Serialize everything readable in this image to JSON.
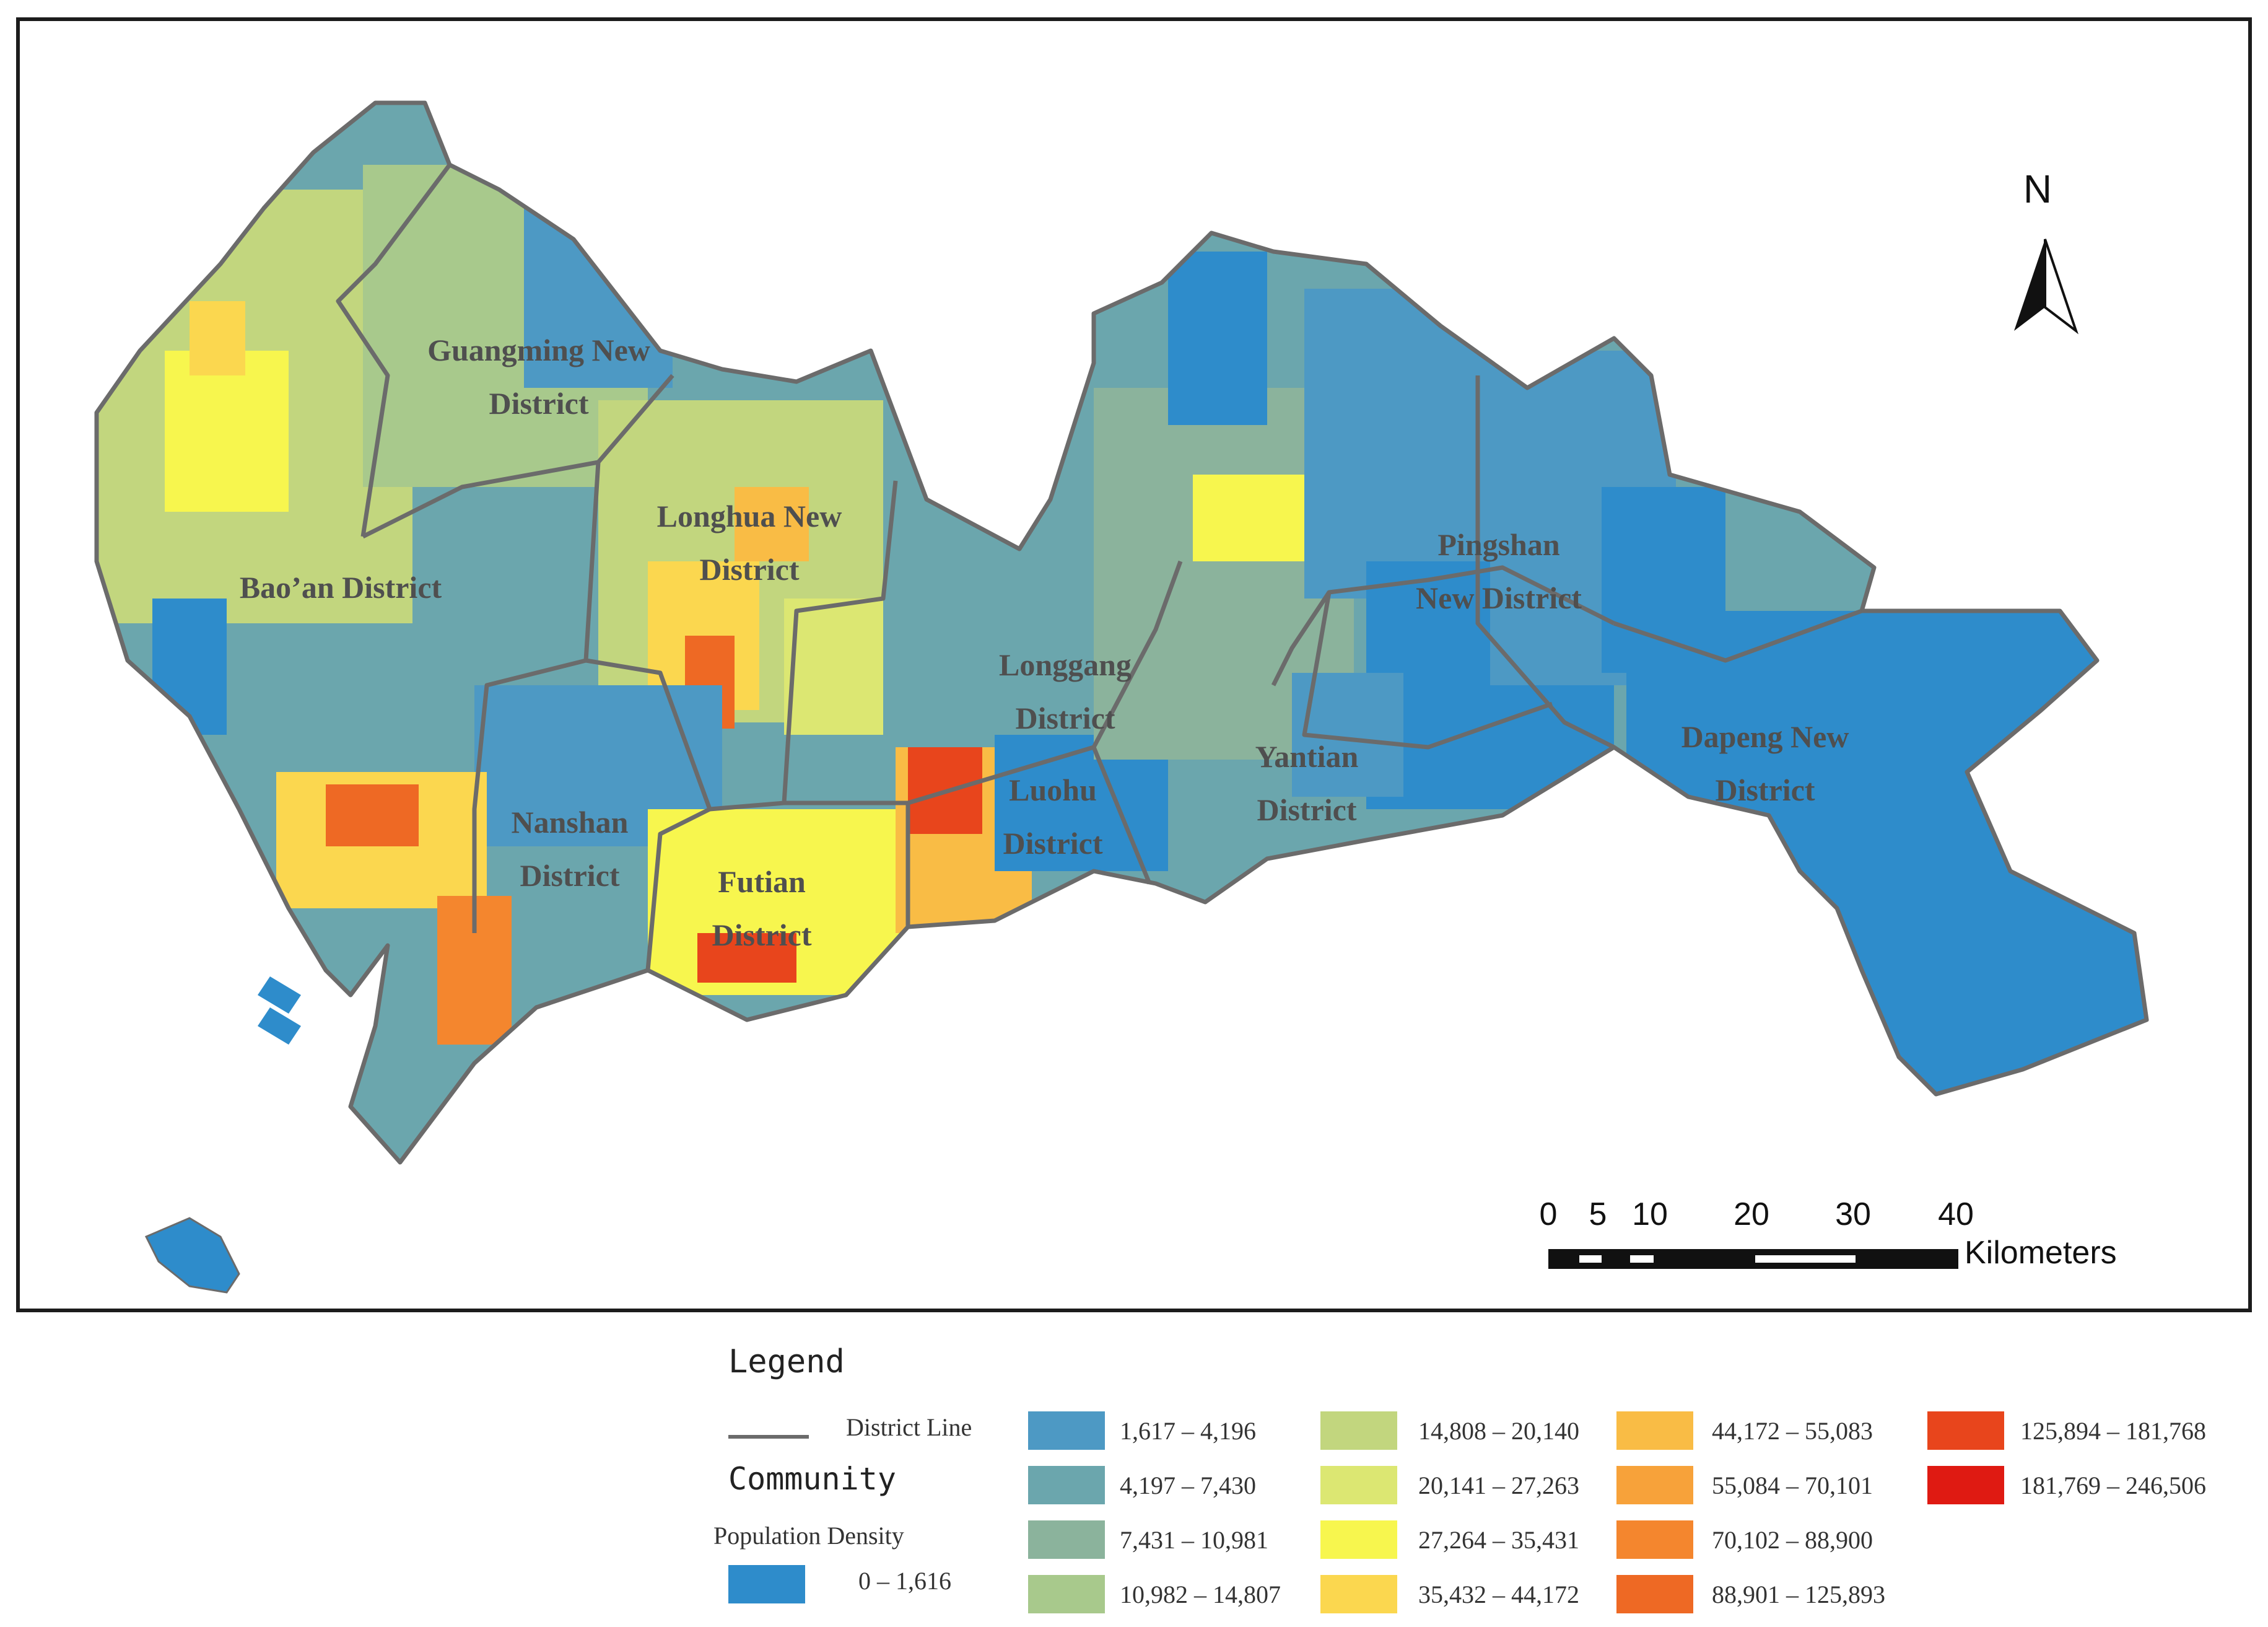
{
  "districts": [
    {
      "id": "guangming",
      "lines": [
        "Guangming New",
        "District"
      ]
    },
    {
      "id": "baoan",
      "lines": [
        "Bao’an District"
      ]
    },
    {
      "id": "longhua",
      "lines": [
        "Longhua New",
        "District"
      ]
    },
    {
      "id": "longgang",
      "lines": [
        "Longgang",
        "District"
      ]
    },
    {
      "id": "pingshan",
      "lines": [
        "Pingshan",
        "New District"
      ]
    },
    {
      "id": "nanshan",
      "lines": [
        "Nanshan",
        "District"
      ]
    },
    {
      "id": "futian",
      "lines": [
        "Futian",
        "District"
      ]
    },
    {
      "id": "luohu",
      "lines": [
        "Luohu",
        "District"
      ]
    },
    {
      "id": "yantian",
      "lines": [
        "Yantian",
        "District"
      ]
    },
    {
      "id": "dapeng",
      "lines": [
        "Dapeng New",
        "District"
      ]
    }
  ],
  "north_arrow": {
    "label": "N",
    "icon": "north-arrow-icon"
  },
  "scale_bar": {
    "ticks": [
      "0",
      "5",
      "10",
      "20",
      "30",
      "40"
    ],
    "unit": "Kilometers"
  },
  "legend": {
    "title": "Legend",
    "district_line_label": "District Line",
    "community_label": "Community",
    "population_density_label": "Population Density",
    "classes": [
      {
        "range": "0 – 1,616",
        "color": "#2e8ccb"
      },
      {
        "range": "1,617 – 4,196",
        "color": "#4d99c4"
      },
      {
        "range": "4,197 – 7,430",
        "color": "#6ba6ad"
      },
      {
        "range": "7,431 – 10,981",
        "color": "#8bb39c"
      },
      {
        "range": "10,982 – 14,807",
        "color": "#a8c98c"
      },
      {
        "range": "14,808 – 20,140",
        "color": "#c2d67e"
      },
      {
        "range": "20,141 – 27,263",
        "color": "#dce772"
      },
      {
        "range": "27,264 – 35,431",
        "color": "#f7f64e"
      },
      {
        "range": "35,432 – 44,172",
        "color": "#fbd74f"
      },
      {
        "range": "44,172 – 55,083",
        "color": "#f9bc45"
      },
      {
        "range": "55,084 – 70,101",
        "color": "#f7a23a"
      },
      {
        "range": "70,102 – 88,900",
        "color": "#f4862e"
      },
      {
        "range": "88,901 – 125,893",
        "color": "#ee6924"
      },
      {
        "range": "125,894 – 181,768",
        "color": "#e8451c"
      },
      {
        "range": "181,769 – 246,506",
        "color": "#df1a12"
      }
    ],
    "district_line_color": "#6b6b6b"
  }
}
